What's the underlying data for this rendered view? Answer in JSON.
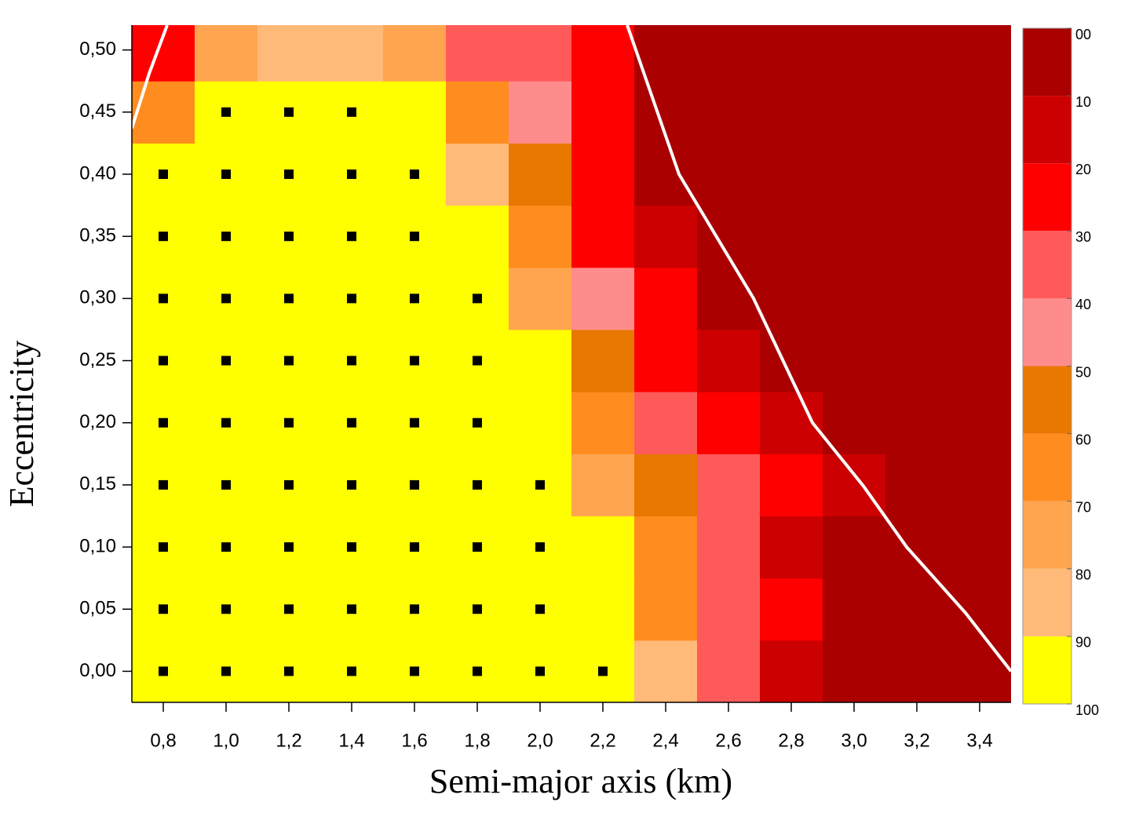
{
  "chart_data": {
    "type": "heatmap",
    "x_label": "Semi-major  axis  (km)",
    "y_label": "Eccentricity",
    "x": [
      0.8,
      1.0,
      1.2,
      1.4,
      1.6,
      1.8,
      2.0,
      2.2,
      2.4,
      2.6,
      2.8,
      3.0,
      3.2,
      3.4
    ],
    "y": [
      0.0,
      0.05,
      0.1,
      0.15,
      0.2,
      0.25,
      0.3,
      0.35,
      0.4,
      0.45,
      0.5
    ],
    "z": [
      [
        100,
        100,
        100,
        100,
        100,
        100,
        100,
        100,
        85,
        35,
        15,
        5,
        5,
        5
      ],
      [
        100,
        100,
        100,
        100,
        100,
        100,
        100,
        95,
        65,
        35,
        25,
        5,
        5,
        5
      ],
      [
        100,
        100,
        100,
        100,
        100,
        100,
        100,
        95,
        65,
        35,
        15,
        5,
        5,
        5
      ],
      [
        100,
        100,
        100,
        100,
        100,
        100,
        100,
        75,
        55,
        35,
        25,
        15,
        5,
        5
      ],
      [
        100,
        100,
        100,
        100,
        100,
        100,
        95,
        65,
        35,
        25,
        15,
        5,
        5,
        5
      ],
      [
        100,
        100,
        100,
        100,
        100,
        100,
        95,
        55,
        25,
        15,
        5,
        5,
        5,
        5
      ],
      [
        100,
        100,
        100,
        100,
        100,
        100,
        75,
        45,
        25,
        5,
        5,
        5,
        5,
        5
      ],
      [
        100,
        100,
        100,
        100,
        100,
        95,
        65,
        25,
        15,
        5,
        5,
        5,
        5,
        5
      ],
      [
        100,
        100,
        100,
        100,
        100,
        85,
        55,
        25,
        5,
        5,
        5,
        5,
        5,
        5
      ],
      [
        65,
        100,
        100,
        100,
        95,
        65,
        45,
        25,
        5,
        5,
        5,
        5,
        5,
        5
      ],
      [
        25,
        75,
        85,
        85,
        75,
        35,
        35,
        25,
        5,
        5,
        5,
        5,
        5,
        5
      ]
    ],
    "xlim": [
      0.7,
      3.5
    ],
    "ylim": [
      -0.025,
      0.52
    ],
    "xticks": [
      {
        "value": 0.8,
        "label": "0,8"
      },
      {
        "value": 1.0,
        "label": "1,0"
      },
      {
        "value": 1.2,
        "label": "1,2"
      },
      {
        "value": 1.4,
        "label": "1,4"
      },
      {
        "value": 1.6,
        "label": "1,6"
      },
      {
        "value": 1.8,
        "label": "1,8"
      },
      {
        "value": 2.0,
        "label": "2,0"
      },
      {
        "value": 2.2,
        "label": "2,2"
      },
      {
        "value": 2.4,
        "label": "2,4"
      },
      {
        "value": 2.6,
        "label": "2,6"
      },
      {
        "value": 2.8,
        "label": "2,8"
      },
      {
        "value": 3.0,
        "label": "3,0"
      },
      {
        "value": 3.2,
        "label": "3,2"
      },
      {
        "value": 3.4,
        "label": "3,4"
      }
    ],
    "yticks": [
      {
        "value": 0.0,
        "label": "0,00"
      },
      {
        "value": 0.05,
        "label": "0,05"
      },
      {
        "value": 0.1,
        "label": "0,10"
      },
      {
        "value": 0.15,
        "label": "0,15"
      },
      {
        "value": 0.2,
        "label": "0,20"
      },
      {
        "value": 0.25,
        "label": "0,25"
      },
      {
        "value": 0.3,
        "label": "0,30"
      },
      {
        "value": 0.35,
        "label": "0,35"
      },
      {
        "value": 0.4,
        "label": "0,40"
      },
      {
        "value": 0.45,
        "label": "0,45"
      },
      {
        "value": 0.5,
        "label": "0,50"
      }
    ],
    "zlim": [
      0,
      100
    ],
    "zticks": [
      {
        "value": 0,
        "label": "00"
      },
      10,
      20,
      30,
      40,
      50,
      60,
      70,
      80,
      90,
      100
    ],
    "colors": [
      "#aa0000",
      "#cc0000",
      "#ff0000",
      "#ff5a5a",
      "#ff8c8c",
      "#e87800",
      "#ff8c1e",
      "#ffa54f",
      "#ffb978",
      "#ffff00"
    ],
    "marker_color": "#000000",
    "curves": [
      {
        "color": "#ffffff",
        "x": [
          0.7,
          0.755,
          0.8125
        ],
        "y": [
          0.437,
          0.481,
          0.52
        ]
      },
      {
        "color": "#ffffff",
        "x": [
          2.2775,
          2.4425,
          2.68,
          2.8675,
          3.03,
          3.1675,
          3.355,
          3.5
        ],
        "y": [
          0.52,
          0.4,
          0.3,
          0.2,
          0.149,
          0.1,
          0.047,
          0.0
        ]
      }
    ]
  }
}
